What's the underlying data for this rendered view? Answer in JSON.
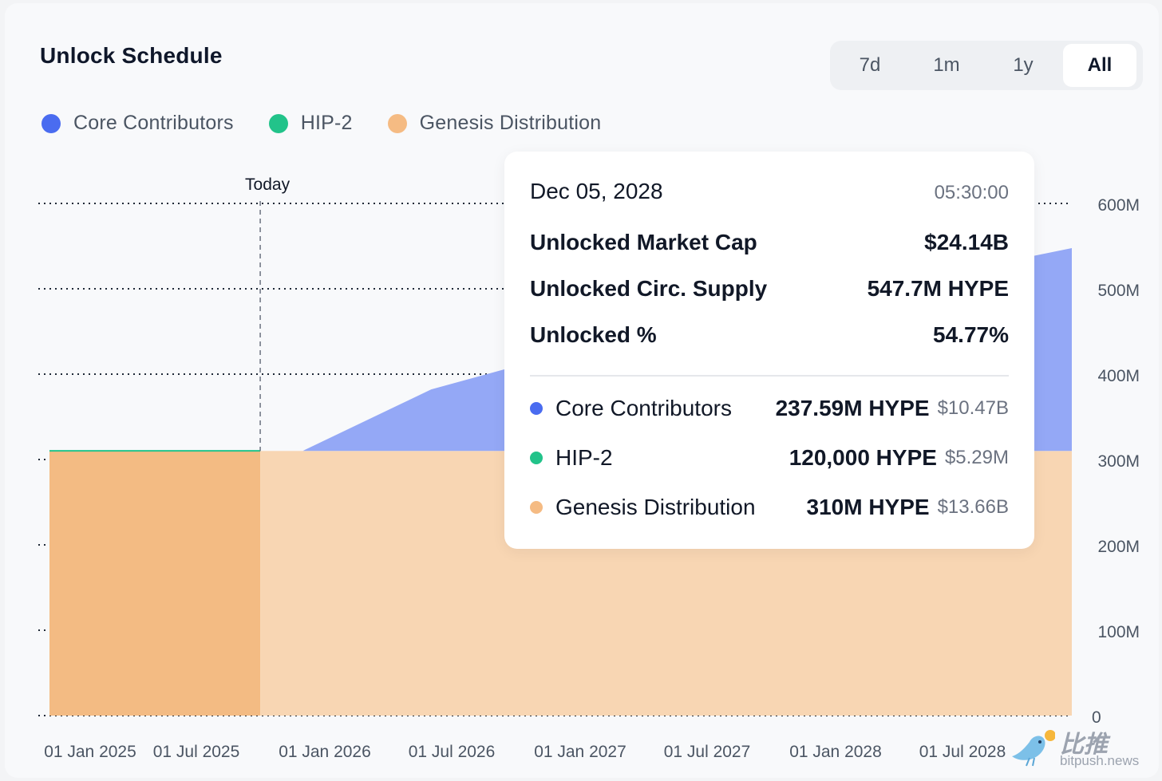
{
  "header": {
    "title": "Unlock Schedule"
  },
  "range_selector": {
    "options": [
      "7d",
      "1m",
      "1y",
      "All"
    ],
    "active": "All"
  },
  "colors": {
    "core_contributors": "#4a6cf0",
    "hip2": "#22c38a",
    "genesis": "#f5bb83",
    "core_area": "#94a8f6",
    "genesis_area_light": "#f8d6b3",
    "genesis_area_dark": "#f3bb83"
  },
  "today_label": "Today",
  "tooltip": {
    "date": "Dec 05, 2028",
    "time": "05:30:00",
    "metrics": [
      {
        "label": "Unlocked Market Cap",
        "value": "$24.14B"
      },
      {
        "label": "Unlocked Circ. Supply",
        "value": "547.7M HYPE"
      },
      {
        "label": "Unlocked %",
        "value": "54.77%"
      }
    ],
    "series": [
      {
        "name": "Core Contributors",
        "amount": "237.59M HYPE",
        "usd": "$10.47B",
        "color": "#4a6cf0"
      },
      {
        "name": "HIP-2",
        "amount": "120,000 HYPE",
        "usd": "$5.29M",
        "color": "#22c38a"
      },
      {
        "name": "Genesis Distribution",
        "amount": "310M HYPE",
        "usd": "$13.66B",
        "color": "#f5bb83"
      }
    ]
  },
  "watermark": {
    "cn": "比推",
    "en": "bitpush.news"
  },
  "chart_data": {
    "type": "area",
    "stacked": true,
    "x_ticks": [
      "01 Jan 2025",
      "01 Jul 2025",
      "01 Jan 2026",
      "01 Jul 2026",
      "01 Jan 2027",
      "01 Jul 2027",
      "01 Jan 2028",
      "01 Jul 2028"
    ],
    "y_ticks": [
      "0",
      "100M",
      "200M",
      "300M",
      "400M",
      "500M",
      "600M"
    ],
    "ylim": [
      0,
      600
    ],
    "y_unit": "M HYPE",
    "xlim": [
      "2024-12-01",
      "2028-12-05"
    ],
    "today": "2025-09-29",
    "grid": true,
    "legend_position": "top-left",
    "series": [
      {
        "name": "Genesis Distribution",
        "x": [
          "2024-12-01",
          "2028-12-05"
        ],
        "values": [
          310,
          310
        ]
      },
      {
        "name": "HIP-2",
        "x": [
          "2024-12-01",
          "2028-12-05"
        ],
        "values": [
          0.12,
          0.12
        ]
      },
      {
        "name": "Core Contributors",
        "x": [
          "2024-12-01",
          "2025-11-29",
          "2026-06-01",
          "2027-01-01",
          "2028-12-05"
        ],
        "values": [
          0,
          0,
          72,
          120,
          237.59
        ]
      }
    ]
  }
}
